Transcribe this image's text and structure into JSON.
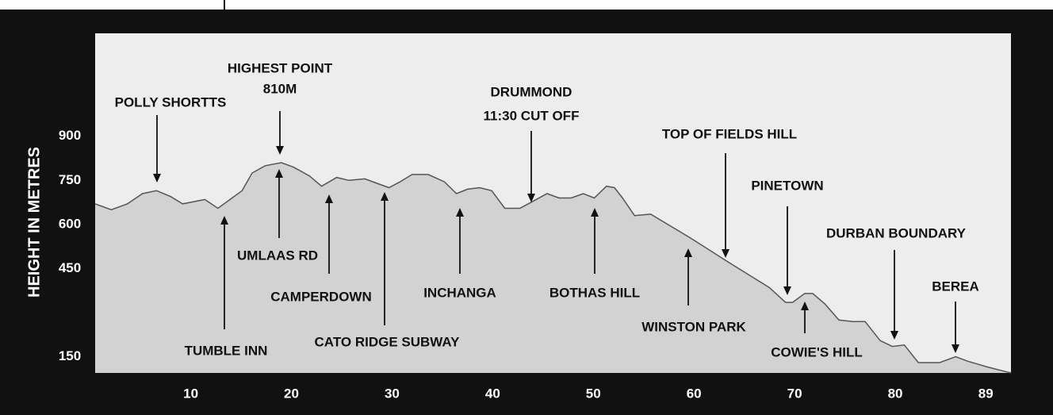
{
  "chart_data": {
    "type": "area",
    "y_label": "HEIGHT IN METRES",
    "x": [
      0.5,
      2.1,
      3.7,
      5.2,
      6.6,
      8.0,
      9.2,
      11.4,
      12.7,
      13.9,
      15.1,
      16.1,
      17.4,
      19.0,
      20.2,
      21.8,
      23.0,
      24.5,
      25.7,
      27.3,
      28.5,
      29.7,
      30.8,
      32.0,
      33.6,
      35.2,
      36.4,
      37.5,
      38.7,
      39.9,
      41.2,
      42.7,
      43.8,
      45.4,
      46.6,
      47.8,
      49.0,
      50.1,
      51.3,
      52.1,
      52.9,
      54.1,
      55.7,
      59.6,
      63.5,
      67.5,
      69.1,
      69.8,
      71.0,
      71.8,
      73.0,
      74.4,
      75.8,
      77.0,
      78.5,
      79.7,
      80.9,
      82.3,
      84.4,
      86.0,
      87.2,
      89.2,
      91.5
    ],
    "values": [
      670,
      650,
      670,
      705,
      715,
      695,
      670,
      685,
      655,
      685,
      715,
      775,
      800,
      810,
      795,
      765,
      730,
      760,
      750,
      755,
      740,
      725,
      745,
      770,
      770,
      745,
      705,
      720,
      725,
      715,
      655,
      655,
      675,
      705,
      690,
      690,
      705,
      690,
      730,
      725,
      690,
      630,
      635,
      555,
      470,
      385,
      335,
      335,
      365,
      365,
      330,
      275,
      270,
      270,
      205,
      185,
      190,
      130,
      130,
      150,
      135,
      115,
      95
    ],
    "color": "#d2d2d2",
    "line_color": "#555555",
    "xlim": [
      0.5,
      91.5
    ],
    "xticks": [
      10,
      20,
      30,
      40,
      50,
      60,
      70,
      80,
      89
    ],
    "ylim": [
      95,
      1250
    ],
    "yticks": [
      150,
      450,
      600,
      750,
      900
    ],
    "grid": false,
    "annotations": [
      [
        "POLLY SHORTTS"
      ],
      [
        "HIGHEST POINT",
        "810M"
      ],
      [
        "DRUMMOND",
        "11:30 CUT OFF"
      ],
      [
        "TOP OF FIELDS HILL"
      ],
      [
        "PINETOWN"
      ],
      [
        "DURBAN BOUNDARY"
      ],
      [
        "BEREA"
      ],
      [
        "TUMBLE INN"
      ],
      [
        "UMLAAS RD"
      ],
      [
        "CAMPERDOWN"
      ],
      [
        "CATO RIDGE SUBWAY"
      ],
      [
        "INCHANGA"
      ],
      [
        "BOTHAS HILL"
      ],
      [
        "WINSTON PARK"
      ],
      [
        "COWIE'S HILL"
      ]
    ]
  }
}
